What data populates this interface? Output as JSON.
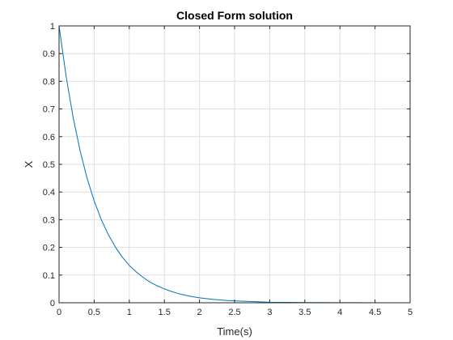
{
  "chart_data": {
    "type": "line",
    "title": "Closed Form solution",
    "xlabel": "Time(s)",
    "ylabel": "X",
    "xlim": [
      0,
      5
    ],
    "ylim": [
      0,
      1
    ],
    "xticks": [
      0,
      0.5,
      1,
      1.5,
      2,
      2.5,
      3,
      3.5,
      4,
      4.5,
      5
    ],
    "xtick_labels": [
      "0",
      "0.5",
      "1",
      "1.5",
      "2",
      "2.5",
      "3",
      "3.5",
      "4",
      "4.5",
      "5"
    ],
    "yticks": [
      0,
      0.1,
      0.2,
      0.3,
      0.4,
      0.5,
      0.6,
      0.7,
      0.8,
      0.9,
      1
    ],
    "ytick_labels": [
      "0",
      "0.1",
      "0.2",
      "0.3",
      "0.4",
      "0.5",
      "0.6",
      "0.7",
      "0.8",
      "0.9",
      "1"
    ],
    "grid": true,
    "series": [
      {
        "color": "#0072BD",
        "x": [
          0,
          0.1,
          0.2,
          0.3,
          0.4,
          0.5,
          0.6,
          0.7,
          0.8,
          0.9,
          1,
          1.1,
          1.2,
          1.3,
          1.4,
          1.5,
          1.6,
          1.7,
          1.8,
          1.9,
          2,
          2.2,
          2.4,
          2.6,
          2.8,
          3,
          3.25,
          3.5,
          3.75,
          4,
          4.25,
          4.5,
          4.75,
          5
        ],
        "y": [
          1,
          0.819,
          0.67,
          0.549,
          0.449,
          0.368,
          0.301,
          0.247,
          0.202,
          0.165,
          0.135,
          0.111,
          0.091,
          0.074,
          0.061,
          0.05,
          0.041,
          0.033,
          0.027,
          0.022,
          0.018,
          0.012,
          0.008,
          0.006,
          0.004,
          0.002,
          0.0015,
          0.0009,
          0.0006,
          0.0003,
          0.0002,
          0.0001,
          0.0001,
          5e-05
        ]
      }
    ]
  }
}
